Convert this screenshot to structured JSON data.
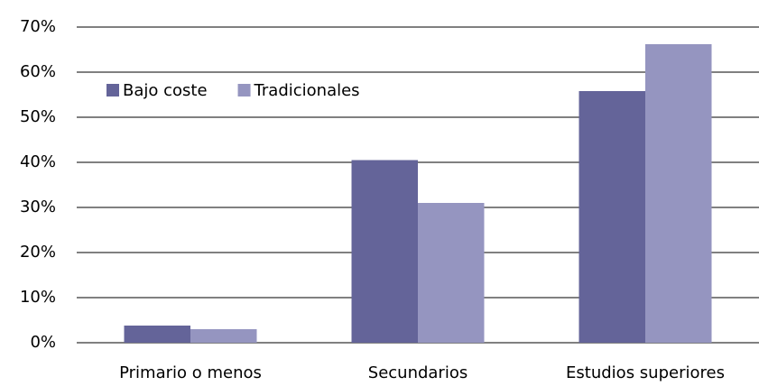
{
  "chart_data": {
    "type": "bar",
    "categories": [
      "Primario o menos",
      "Secundarios",
      "Estudios superiores"
    ],
    "series": [
      {
        "name": "Bajo coste",
        "color": "#646499",
        "values": [
          3.8,
          40.5,
          55.8
        ]
      },
      {
        "name": "Tradicionales",
        "color": "#9595c0",
        "values": [
          3.0,
          31.0,
          66.2
        ]
      }
    ],
    "ylim": [
      0,
      70
    ],
    "yticks": [
      {
        "value": 0,
        "label": "0%"
      },
      {
        "value": 10,
        "label": "10%"
      },
      {
        "value": 20,
        "label": "20%"
      },
      {
        "value": 30,
        "label": "30%"
      },
      {
        "value": 40,
        "label": "40%"
      },
      {
        "value": 50,
        "label": "50%"
      },
      {
        "value": 60,
        "label": "60%"
      },
      {
        "value": 70,
        "label": "70%"
      }
    ],
    "grid": true,
    "legend": "top-left"
  }
}
